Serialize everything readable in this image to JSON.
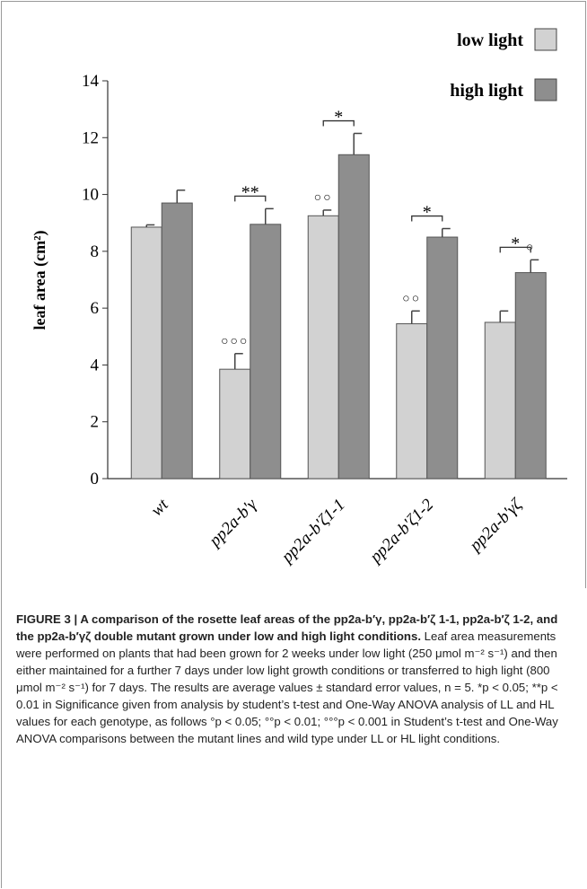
{
  "chart_data": {
    "type": "bar",
    "y_label": "leaf area (cm²)",
    "categories": [
      "wt",
      "pp2a-b'γ",
      "pp2a-b'ζ1-1",
      "pp2a-b'ζ1-2",
      "pp2a-b'γζ"
    ],
    "series": [
      {
        "name": "low light",
        "color": "#d2d2d2",
        "values": [
          8.85,
          3.85,
          9.25,
          5.45,
          5.5
        ],
        "errors": [
          0.08,
          0.55,
          0.2,
          0.45,
          0.4
        ],
        "marks": [
          null,
          "○○○",
          "○○",
          "○○",
          null
        ]
      },
      {
        "name": "high light",
        "color": "#8e8e8e",
        "values": [
          9.7,
          8.95,
          11.4,
          8.5,
          7.25
        ],
        "errors": [
          0.45,
          0.55,
          0.75,
          0.3,
          0.45
        ],
        "marks": [
          null,
          null,
          null,
          null,
          "○"
        ]
      }
    ],
    "significance": [
      null,
      "**",
      "*",
      "*",
      "*"
    ],
    "ylim": [
      0,
      14
    ],
    "yticks": [
      0,
      2,
      4,
      6,
      8,
      10,
      12,
      14
    ]
  },
  "caption": {
    "title": "FIGURE 3 | A comparison of the rosette leaf areas of the pp2a-b′γ, pp2a-b′ζ 1-1, pp2a-b′ζ 1-2, and the pp2a-b′γζ double mutant grown under low and high light conditions.",
    "body": "Leaf area measurements were performed on plants that had been grown for 2 weeks under low light (250 μmol m⁻² s⁻¹) and then either maintained for a further 7 days under low light growth conditions or transferred to high light (800 μmol m⁻² s⁻¹) for 7 days. The results are average values ± standard error values, n = 5. *p < 0.05; **p < 0.01 in Significance given from analysis by student’s t-test and One-Way ANOVA analysis of LL and HL values for each genotype, as follows °p < 0.05; °°p < 0.01; °°°p < 0.001 in Student’s t-test and One-Way ANOVA comparisons between the mutant lines and wild type under LL or HL light conditions."
  }
}
